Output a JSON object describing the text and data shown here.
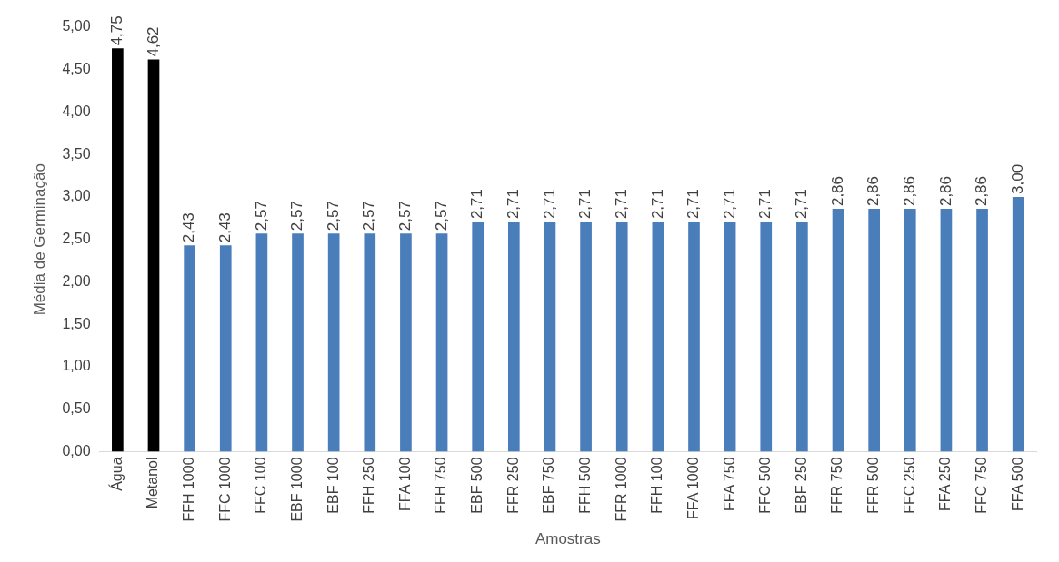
{
  "chart_data": {
    "type": "bar",
    "xlabel": "Amostras",
    "ylabel": "Média de Germinação",
    "categories": [
      "Água",
      "Metanol",
      "FFH 1000",
      "FFC 1000",
      "FFC 100",
      "EBF 1000",
      "EBF 100",
      "FFH 250",
      "FFA 100",
      "FFH 750",
      "EBF 500",
      "FFR 250",
      "EBF 750",
      "FFH 500",
      "FFR 1000",
      "FFH 100",
      "FFA 1000",
      "FFA 750",
      "FFC 500",
      "EBF 250",
      "FFR 750",
      "FFR 500",
      "FFC 250",
      "FFA 250",
      "FFC 750",
      "FFA 500"
    ],
    "values": [
      4.75,
      4.62,
      2.43,
      2.43,
      2.57,
      2.57,
      2.57,
      2.57,
      2.57,
      2.57,
      2.71,
      2.71,
      2.71,
      2.71,
      2.71,
      2.71,
      2.71,
      2.71,
      2.71,
      2.71,
      2.86,
      2.86,
      2.86,
      2.86,
      2.86,
      3.0
    ],
    "value_labels": [
      "4,75",
      "4,62",
      "2,43",
      "2,43",
      "2,57",
      "2,57",
      "2,57",
      "2,57",
      "2,57",
      "2,57",
      "2,71",
      "2,71",
      "2,71",
      "2,71",
      "2,71",
      "2,71",
      "2,71",
      "2,71",
      "2,71",
      "2,71",
      "2,86",
      "2,86",
      "2,86",
      "2,86",
      "2,86",
      "3,00"
    ],
    "colors": [
      "#000000",
      "#000000",
      "#4a7ebb",
      "#4a7ebb",
      "#4a7ebb",
      "#4a7ebb",
      "#4a7ebb",
      "#4a7ebb",
      "#4a7ebb",
      "#4a7ebb",
      "#4a7ebb",
      "#4a7ebb",
      "#4a7ebb",
      "#4a7ebb",
      "#4a7ebb",
      "#4a7ebb",
      "#4a7ebb",
      "#4a7ebb",
      "#4a7ebb",
      "#4a7ebb",
      "#4a7ebb",
      "#4a7ebb",
      "#4a7ebb",
      "#4a7ebb",
      "#4a7ebb",
      "#4a7ebb"
    ],
    "ylim": [
      0,
      5
    ],
    "yticks": [
      {
        "value": 0,
        "label": "0,00"
      },
      {
        "value": 0.5,
        "label": "0,50"
      },
      {
        "value": 1,
        "label": "1,00"
      },
      {
        "value": 1.5,
        "label": "1,50"
      },
      {
        "value": 2,
        "label": "2,00"
      },
      {
        "value": 2.5,
        "label": "2,50"
      },
      {
        "value": 3,
        "label": "3,00"
      },
      {
        "value": 3.5,
        "label": "3,50"
      },
      {
        "value": 4,
        "label": "4,00"
      },
      {
        "value": 4.5,
        "label": "4,50"
      },
      {
        "value": 5,
        "label": "5,00"
      }
    ],
    "grid": false,
    "legend": false
  }
}
